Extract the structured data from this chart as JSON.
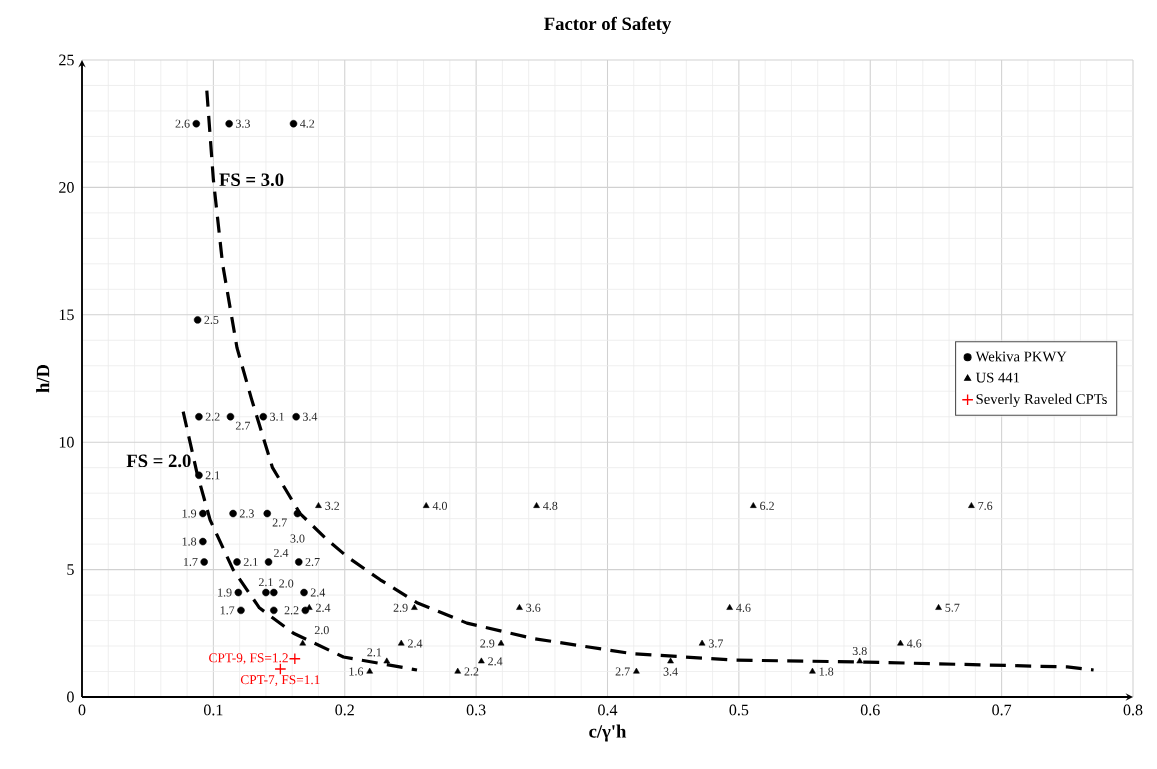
{
  "chart_data": {
    "type": "scatter",
    "title": "Factor of Safety",
    "xlabel": "c/γ'h",
    "ylabel": "h/D",
    "xlim": [
      0,
      0.8
    ],
    "ylim": [
      0,
      25
    ],
    "xticks": [
      0,
      0.1,
      0.2,
      0.3,
      0.4,
      0.5,
      0.6,
      0.7,
      0.8
    ],
    "yticks": [
      0,
      5,
      10,
      15,
      20,
      25
    ],
    "grid": true,
    "legend": "right",
    "series": [
      {
        "name": "Wekiva PKWY",
        "marker": "circle",
        "color": "#000000",
        "x": [
          0.087,
          0.112,
          0.161,
          0.088,
          0.089,
          0.113,
          0.138,
          0.163,
          0.089,
          0.092,
          0.115,
          0.141,
          0.164,
          0.092,
          0.093,
          0.118,
          0.142,
          0.165,
          0.119,
          0.14,
          0.146,
          0.169,
          0.121,
          0.146,
          0.17
        ],
        "values": [
          22.5,
          22.5,
          22.5,
          14.8,
          11,
          11,
          11,
          11,
          8.7,
          7.2,
          7.2,
          7.2,
          7.2,
          6.1,
          5.3,
          5.3,
          5.3,
          5.3,
          4.1,
          4.1,
          4.1,
          4.1,
          3.4,
          3.4,
          3.4
        ]
      },
      {
        "name": "US 441",
        "marker": "triangle",
        "color": "#000000",
        "x": [
          0.18,
          0.262,
          0.346,
          0.511,
          0.677,
          0.173,
          0.253,
          0.333,
          0.493,
          0.652,
          0.168,
          0.243,
          0.319,
          0.472,
          0.623,
          0.232,
          0.304,
          0.448,
          0.592,
          0.219,
          0.286,
          0.422,
          0.556
        ],
        "values": [
          7.5,
          7.5,
          7.5,
          7.5,
          7.5,
          3.5,
          3.5,
          3.5,
          3.5,
          3.5,
          2.1,
          2.1,
          2.1,
          2.1,
          2.1,
          1.4,
          1.4,
          1.4,
          1.4,
          1.0,
          1.0,
          1.0,
          1.0
        ]
      },
      {
        "name": "Severly Raveled CPTs",
        "marker": "cross",
        "color": "#ff0000",
        "x": [
          0.162,
          0.151
        ],
        "values": [
          1.5,
          1.1
        ]
      },
      {
        "name": "FS = 3.0",
        "type": "line",
        "line_style": "dashed",
        "color": "#000000",
        "x": [
          0.095,
          0.1,
          0.107,
          0.118,
          0.129,
          0.145,
          0.166,
          0.186,
          0.202,
          0.227,
          0.255,
          0.293,
          0.343,
          0.419,
          0.496,
          0.597,
          0.75,
          0.77
        ],
        "values": [
          23.8,
          20.3,
          17.0,
          13.7,
          11.7,
          9.0,
          7.2,
          6.2,
          5.5,
          4.6,
          3.7,
          2.9,
          2.3,
          1.7,
          1.45,
          1.37,
          1.18,
          1.06
        ]
      },
      {
        "name": "FS = 2.0",
        "type": "line",
        "line_style": "dashed",
        "color": "#000000",
        "x": [
          0.077,
          0.0875,
          0.0975,
          0.115,
          0.135,
          0.161,
          0.199,
          0.255
        ],
        "values": [
          11.2,
          8.8,
          6.95,
          5.0,
          3.5,
          2.5,
          1.57,
          1.06
        ]
      }
    ],
    "annotations": [
      {
        "text": "2.6",
        "x": 0.087,
        "y": 22.5
      },
      {
        "text": "3.3",
        "x": 0.112,
        "y": 22.5
      },
      {
        "text": "4.2",
        "x": 0.161,
        "y": 22.5
      },
      {
        "text": "2.5",
        "x": 0.088,
        "y": 14.8
      },
      {
        "text": "2.2",
        "x": 0.089,
        "y": 11
      },
      {
        "text": "2.7",
        "x": 0.113,
        "y": 11
      },
      {
        "text": "3.1",
        "x": 0.138,
        "y": 11
      },
      {
        "text": "3.4",
        "x": 0.163,
        "y": 11
      },
      {
        "text": "2.1",
        "x": 0.089,
        "y": 8.7
      },
      {
        "text": "1.9",
        "x": 0.092,
        "y": 7.2
      },
      {
        "text": "2.3",
        "x": 0.115,
        "y": 7.2
      },
      {
        "text": "2.7",
        "x": 0.141,
        "y": 7.2
      },
      {
        "text": "3.0",
        "x": 0.164,
        "y": 7.2
      },
      {
        "text": "1.8",
        "x": 0.092,
        "y": 6.1
      },
      {
        "text": "1.7",
        "x": 0.093,
        "y": 5.3
      },
      {
        "text": "2.1",
        "x": 0.118,
        "y": 5.3
      },
      {
        "text": "2.4",
        "x": 0.142,
        "y": 5.3
      },
      {
        "text": "2.7",
        "x": 0.165,
        "y": 5.3
      },
      {
        "text": "1.9",
        "x": 0.119,
        "y": 4.1
      },
      {
        "text": "2.1",
        "x": 0.14,
        "y": 4.1
      },
      {
        "text": "2.0",
        "x": 0.146,
        "y": 4.1
      },
      {
        "text": "2.4",
        "x": 0.169,
        "y": 4.1
      },
      {
        "text": "1.7",
        "x": 0.121,
        "y": 3.4
      },
      {
        "text": "2.2",
        "x": 0.17,
        "y": 3.4
      },
      {
        "text": "3.2",
        "x": 0.18,
        "y": 7.5
      },
      {
        "text": "4.0",
        "x": 0.262,
        "y": 7.5
      },
      {
        "text": "4.8",
        "x": 0.346,
        "y": 7.5
      },
      {
        "text": "6.2",
        "x": 0.511,
        "y": 7.5
      },
      {
        "text": "7.6",
        "x": 0.677,
        "y": 7.5
      },
      {
        "text": "2.4",
        "x": 0.173,
        "y": 3.5
      },
      {
        "text": "2.9",
        "x": 0.253,
        "y": 3.5
      },
      {
        "text": "3.6",
        "x": 0.333,
        "y": 3.5
      },
      {
        "text": "4.6",
        "x": 0.493,
        "y": 3.5
      },
      {
        "text": "5.7",
        "x": 0.652,
        "y": 3.5
      },
      {
        "text": "2.0",
        "x": 0.168,
        "y": 2.1
      },
      {
        "text": "2.4",
        "x": 0.243,
        "y": 2.1
      },
      {
        "text": "2.9",
        "x": 0.319,
        "y": 2.1
      },
      {
        "text": "3.7",
        "x": 0.472,
        "y": 2.1
      },
      {
        "text": "4.6",
        "x": 0.623,
        "y": 2.1
      },
      {
        "text": "2.1",
        "x": 0.232,
        "y": 1.4
      },
      {
        "text": "2.4",
        "x": 0.304,
        "y": 1.4
      },
      {
        "text": "3.4",
        "x": 0.448,
        "y": 1.4
      },
      {
        "text": "3.8",
        "x": 0.592,
        "y": 1.4
      },
      {
        "text": "1.6",
        "x": 0.219,
        "y": 1.0
      },
      {
        "text": "2.2",
        "x": 0.286,
        "y": 1.0
      },
      {
        "text": "2.7",
        "x": 0.422,
        "y": 1.0
      },
      {
        "text": "1.8",
        "x": 0.556,
        "y": 1.0
      },
      {
        "text": "CPT-9, FS=1.2",
        "x": 0.162,
        "y": 1.5
      },
      {
        "text": "CPT-7, FS=1.1",
        "x": 0.151,
        "y": 1.1
      }
    ]
  }
}
